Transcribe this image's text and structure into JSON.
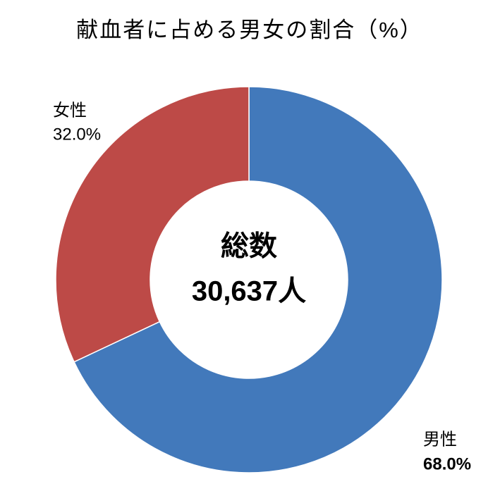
{
  "chart_data": {
    "type": "pie",
    "title": "献血者に占める男女の割合（%）",
    "categories": [
      "男性",
      "女性"
    ],
    "values": [
      68.0,
      32.0
    ],
    "value_labels": [
      "68.0%",
      "32.0%"
    ],
    "colors": [
      "#4279bb",
      "#bd4a47"
    ],
    "center_label": [
      "総数",
      "30,637人"
    ]
  }
}
